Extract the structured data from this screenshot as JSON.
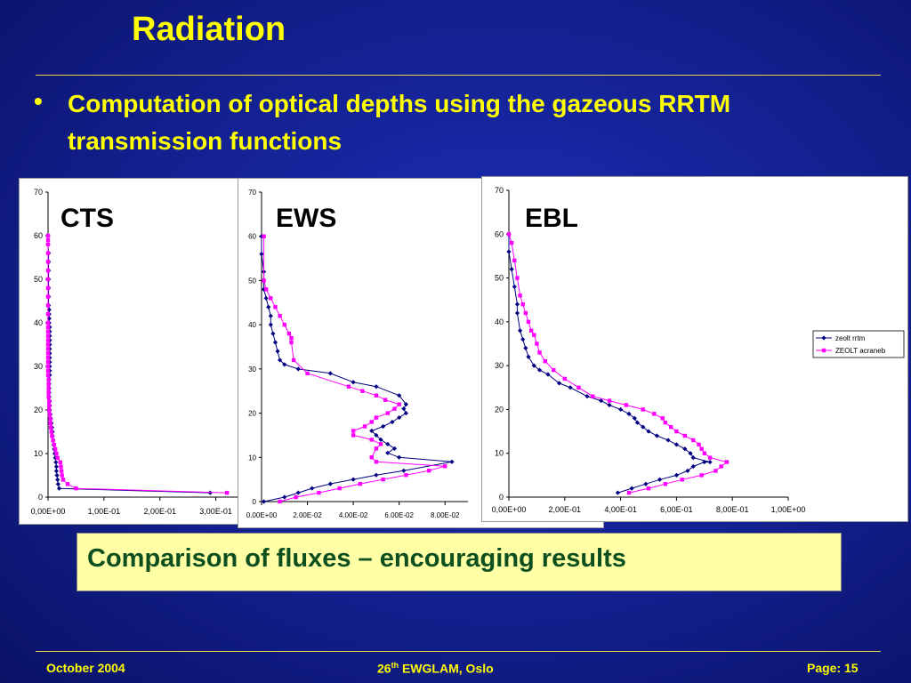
{
  "slide": {
    "title": "Radiation",
    "bullet": "Computation of optical depths using the gazeous RRTM transmission functions",
    "bullet_marker": "•",
    "conclusion": "Comparison of fluxes – encouraging results",
    "footer": {
      "date": "October 2004",
      "event_pre": "26",
      "event_sup": "th",
      "event_post": " EWGLAM, Oslo",
      "page": "Page: 15"
    }
  },
  "colors": {
    "background": "#13208f",
    "title": "#ffff00",
    "series_1": "#000080",
    "series_2": "#ff00ff",
    "conclusion_box": "#ffffa6",
    "conclusion_text": "#0e4f1f"
  },
  "chart_data": [
    {
      "type": "line",
      "label": "CTS",
      "xlim": [
        0,
        0.35
      ],
      "ylim": [
        0,
        70
      ],
      "xticks": [
        0,
        0.1,
        0.2,
        0.3
      ],
      "xtick_labels": [
        "0,00E+00",
        "1,00E-01",
        "2,00E-01",
        "3,00E-01"
      ],
      "yticks": [
        0,
        10,
        20,
        30,
        40,
        50,
        60,
        70
      ],
      "ytick_labels": [
        "0",
        "10",
        "20",
        "30",
        "40",
        "50",
        "60",
        "70"
      ],
      "series": [
        {
          "x": [
            0.29,
            0.02,
            0.018,
            0.017,
            0.016,
            0.015,
            0.015,
            0.014,
            0.013,
            0.012,
            0.011,
            0.01,
            0.009,
            0.008,
            0.008,
            0.007,
            0.006,
            0.005,
            0.004,
            0.003,
            0.003,
            0.003,
            0.002,
            0.002,
            0.002,
            0.002,
            0.002,
            0.003,
            0.003,
            0.003,
            0.003,
            0.003,
            0.003,
            0.003,
            0.003,
            0.003,
            0.003,
            0.003,
            0.003,
            0.002,
            0.002,
            0.002,
            0.002,
            0.001,
            0.001,
            0.001,
            0.001,
            0.001,
            0.001,
            0.001,
            0.0,
            0.0
          ],
          "y": [
            1,
            2,
            3,
            4,
            5,
            6,
            7,
            8,
            9,
            10,
            11,
            12,
            13,
            14,
            15,
            16,
            17,
            18,
            19,
            20,
            21,
            22,
            23,
            24,
            25,
            26,
            27,
            28,
            29,
            30,
            31,
            32,
            33,
            34,
            35,
            36,
            37,
            38,
            39,
            40,
            41,
            42,
            43,
            44,
            46,
            48,
            50,
            52,
            54,
            56,
            58,
            60
          ]
        },
        {
          "x": [
            0.32,
            0.05,
            0.035,
            0.027,
            0.025,
            0.024,
            0.023,
            0.022,
            0.017,
            0.015,
            0.013,
            0.011,
            0.009,
            0.007,
            0.006,
            0.005,
            0.004,
            0.004,
            0.003,
            0.002,
            0.002,
            0.002,
            0.001,
            0.001,
            0.001,
            0.001,
            0.001,
            0.0,
            0.0,
            0.0,
            0.0,
            0.0,
            0.0,
            0.0,
            0.0,
            0.0,
            0.0,
            0.0,
            0.0,
            0.0,
            0.0,
            0.0,
            0.0,
            0.0,
            0.0,
            0.0,
            0.0,
            0.0,
            0.0,
            0.0,
            0.0
          ],
          "y": [
            1,
            2,
            3,
            4,
            5,
            6,
            7,
            8,
            9,
            10,
            11,
            12,
            13,
            14,
            15,
            16,
            17,
            18,
            19,
            20,
            21,
            22,
            23,
            24,
            25,
            26,
            27,
            28,
            29,
            30,
            31,
            32,
            33,
            34,
            35,
            36,
            37,
            38,
            39,
            40,
            42,
            44,
            46,
            48,
            50,
            52,
            54,
            56,
            58,
            59,
            60
          ]
        }
      ]
    },
    {
      "type": "line",
      "label": "EWS",
      "xlim": [
        0,
        0.09
      ],
      "ylim": [
        0,
        70
      ],
      "xticks": [
        0,
        0.02,
        0.04,
        0.06,
        0.08
      ],
      "xtick_labels": [
        "0.00E+00",
        "2.00E-02",
        "4.00E-02",
        "6.00E-02",
        "8.00E-02"
      ],
      "yticks": [
        0,
        10,
        20,
        30,
        40,
        50,
        60,
        70
      ],
      "ytick_labels": [
        "0",
        "10",
        "20",
        "30",
        "40",
        "50",
        "60",
        "70"
      ],
      "series": [
        {
          "x": [
            0.001,
            0.01,
            0.016,
            0.022,
            0.03,
            0.04,
            0.05,
            0.062,
            0.083,
            0.06,
            0.055,
            0.058,
            0.055,
            0.052,
            0.05,
            0.048,
            0.053,
            0.057,
            0.06,
            0.063,
            0.062,
            0.063,
            0.06,
            0.05,
            0.04,
            0.03,
            0.016,
            0.01,
            0.008,
            0.007,
            0.006,
            0.005,
            0.004,
            0.004,
            0.003,
            0.002,
            0.001,
            0.001,
            0.0,
            0.0
          ],
          "y": [
            0,
            1,
            2,
            3,
            4,
            5,
            6,
            7,
            9,
            10,
            11,
            12,
            13,
            14,
            15,
            16,
            17,
            18,
            19,
            20,
            21,
            22,
            24,
            26,
            27,
            29,
            30,
            31,
            32,
            34,
            36,
            38,
            40,
            42,
            44,
            46,
            48,
            52,
            56,
            60
          ]
        },
        {
          "x": [
            0.008,
            0.015,
            0.025,
            0.034,
            0.043,
            0.053,
            0.063,
            0.073,
            0.08,
            0.05,
            0.048,
            0.05,
            0.052,
            0.048,
            0.04,
            0.04,
            0.045,
            0.048,
            0.05,
            0.055,
            0.058,
            0.06,
            0.054,
            0.05,
            0.044,
            0.038,
            0.02,
            0.014,
            0.013,
            0.013,
            0.012,
            0.01,
            0.008,
            0.006,
            0.004,
            0.002,
            0.001,
            0.001
          ],
          "y": [
            0,
            1,
            2,
            3,
            4,
            5,
            6,
            7,
            8,
            9,
            10,
            12,
            13,
            14,
            15,
            16,
            17,
            18,
            19,
            20,
            21,
            22,
            23,
            24,
            25,
            26,
            29,
            32,
            36,
            37,
            38,
            40,
            42,
            44,
            46,
            48,
            50,
            60
          ]
        }
      ]
    },
    {
      "type": "line",
      "label": "EBL",
      "xlim": [
        0,
        1
      ],
      "ylim": [
        0,
        70
      ],
      "xticks": [
        0,
        0.2,
        0.4,
        0.6,
        0.8,
        1.0
      ],
      "xtick_labels": [
        "0,00E+00",
        "2,00E-01",
        "4,00E-01",
        "6,00E-01",
        "8,00E-01",
        "1,00E+00"
      ],
      "yticks": [
        0,
        10,
        20,
        30,
        40,
        50,
        60,
        70
      ],
      "ytick_labels": [
        "0",
        "10",
        "20",
        "30",
        "40",
        "50",
        "60",
        "70"
      ],
      "legend": "right",
      "series": [
        {
          "name": "zeolt rrtm",
          "x": [
            0.39,
            0.44,
            0.49,
            0.54,
            0.6,
            0.64,
            0.66,
            0.7,
            0.72,
            0.66,
            0.65,
            0.63,
            0.6,
            0.57,
            0.53,
            0.5,
            0.48,
            0.46,
            0.45,
            0.43,
            0.4,
            0.36,
            0.33,
            0.28,
            0.22,
            0.18,
            0.14,
            0.11,
            0.09,
            0.07,
            0.06,
            0.05,
            0.04,
            0.03,
            0.03,
            0.02,
            0.01,
            0.0,
            0.0
          ],
          "y": [
            1,
            2,
            3,
            4,
            5,
            6,
            7,
            8,
            8,
            9,
            10,
            11,
            12,
            13,
            14,
            15,
            16,
            17,
            18,
            19,
            20,
            21,
            22,
            23,
            25,
            26,
            28,
            29,
            30,
            32,
            34,
            36,
            38,
            42,
            44,
            48,
            52,
            56,
            60
          ]
        },
        {
          "name": "ZEOLT acraneb",
          "x": [
            0.43,
            0.5,
            0.56,
            0.62,
            0.69,
            0.74,
            0.76,
            0.78,
            0.72,
            0.7,
            0.69,
            0.68,
            0.66,
            0.63,
            0.6,
            0.58,
            0.56,
            0.55,
            0.52,
            0.48,
            0.42,
            0.36,
            0.3,
            0.25,
            0.2,
            0.16,
            0.13,
            0.11,
            0.1,
            0.09,
            0.08,
            0.07,
            0.06,
            0.05,
            0.04,
            0.03,
            0.02,
            0.01,
            0.0
          ],
          "y": [
            1,
            2,
            3,
            4,
            5,
            6,
            7,
            8,
            9,
            10,
            11,
            12,
            13,
            14,
            15,
            16,
            17,
            18,
            19,
            20,
            21,
            22,
            23,
            25,
            27,
            29,
            31,
            33,
            35,
            37,
            38,
            40,
            42,
            44,
            46,
            50,
            54,
            58,
            60
          ]
        }
      ]
    }
  ]
}
